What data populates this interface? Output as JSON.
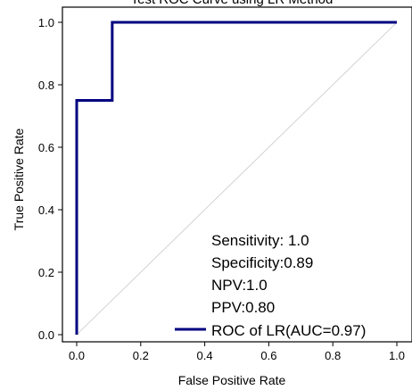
{
  "chart_data": {
    "type": "line",
    "title": "Test ROC Curve using LR Method",
    "xlabel": "False Positive Rate",
    "ylabel": "True Positive Rate",
    "xlim": [
      0,
      1
    ],
    "ylim": [
      0,
      1
    ],
    "x_ticks": [
      "0.0",
      "0.2",
      "0.4",
      "0.6",
      "0.8",
      "1.0"
    ],
    "y_ticks": [
      "0.0",
      "0.2",
      "0.4",
      "0.6",
      "0.8",
      "1.0"
    ],
    "grid": false,
    "series": [
      {
        "name": "ROC of LR(AUC=0.97)",
        "color": "#000080",
        "x": [
          0.0,
          0.0,
          0.111,
          0.111,
          1.0
        ],
        "y": [
          0.0,
          0.75,
          0.75,
          1.0,
          1.0
        ]
      }
    ],
    "reference_line": {
      "color": "#c8c8c8",
      "x": [
        0,
        1
      ],
      "y": [
        0,
        1
      ]
    },
    "annotations": [
      "Sensitivity: 1.0",
      "Specificity:0.89",
      "NPV:1.0",
      "PPV:0.80"
    ],
    "legend_position": "bottom-right"
  }
}
